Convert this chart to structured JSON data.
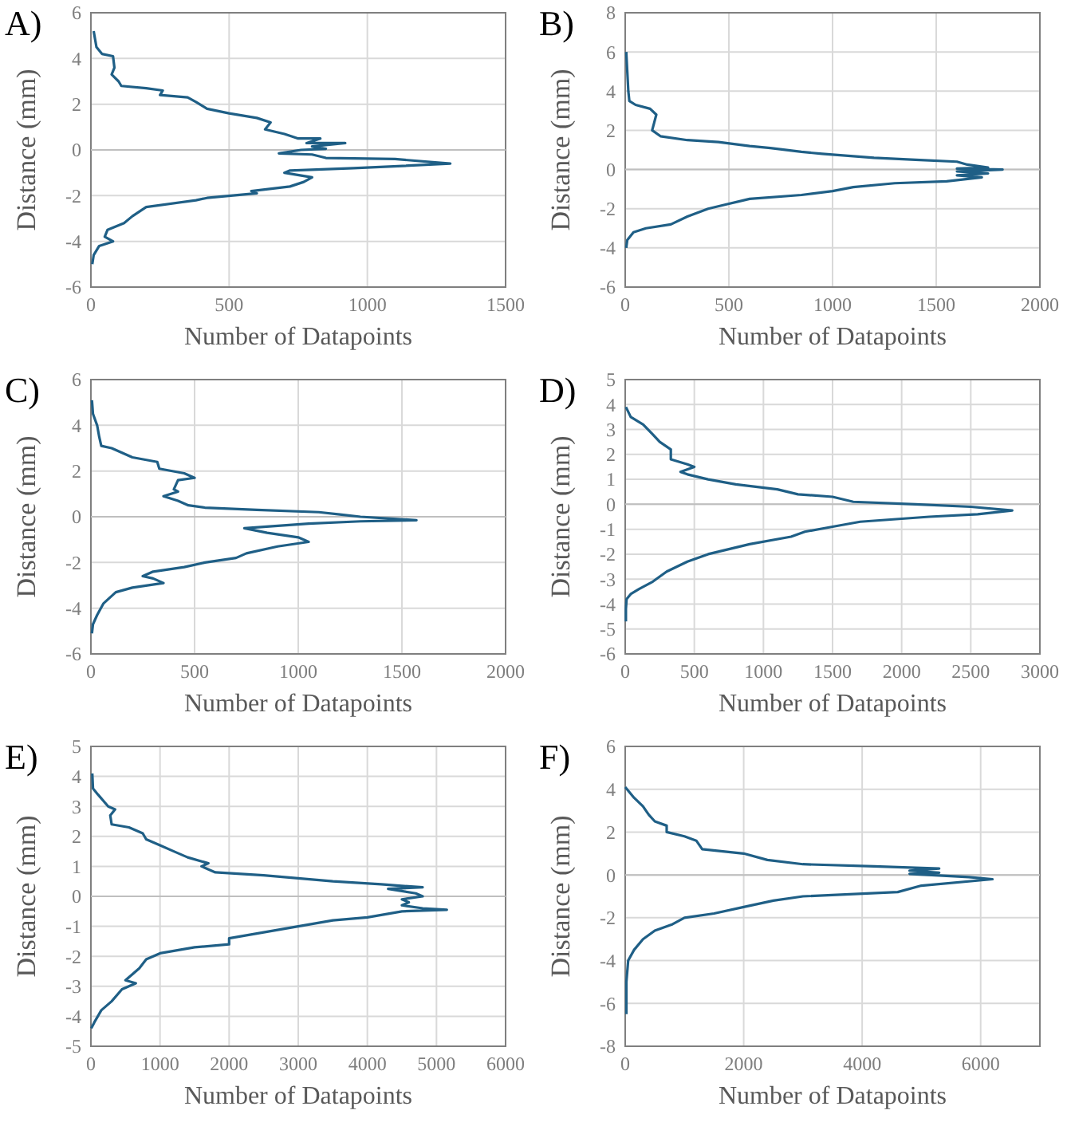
{
  "chart_data": [
    {
      "type": "line",
      "title": "A)",
      "xlabel": "Number of Datapoints",
      "ylabel": "Distance (mm)",
      "xlim": [
        0,
        1500
      ],
      "xticks": [
        0,
        500,
        1000,
        1500
      ],
      "ylim": [
        -6,
        6
      ],
      "yticks": [
        -6,
        -4,
        -2,
        0,
        2,
        4,
        6
      ],
      "grid": true,
      "series": [
        {
          "color": "#1f5f86",
          "x": [
            10,
            20,
            40,
            80,
            85,
            75,
            100,
            110,
            200,
            260,
            250,
            350,
            380,
            420,
            500,
            600,
            650,
            630,
            700,
            750,
            830,
            780,
            920,
            800,
            850,
            760,
            680,
            800,
            850,
            1100,
            1300,
            950,
            720,
            700,
            800,
            770,
            720,
            580,
            600,
            420,
            380,
            200,
            150,
            120,
            60,
            50,
            80,
            30,
            10,
            5
          ],
          "values": [
            5.2,
            4.5,
            4.2,
            4.1,
            3.6,
            3.3,
            3.0,
            2.8,
            2.7,
            2.6,
            2.4,
            2.3,
            2.1,
            1.8,
            1.6,
            1.4,
            1.2,
            0.9,
            0.7,
            0.5,
            0.5,
            0.3,
            0.3,
            0.15,
            0.05,
            0.0,
            -0.15,
            -0.2,
            -0.35,
            -0.4,
            -0.6,
            -0.8,
            -0.9,
            -1.0,
            -1.2,
            -1.4,
            -1.6,
            -1.8,
            -1.9,
            -2.1,
            -2.2,
            -2.5,
            -2.9,
            -3.2,
            -3.5,
            -3.8,
            -4.0,
            -4.2,
            -4.6,
            -5.0
          ]
        }
      ]
    },
    {
      "type": "line",
      "title": "B)",
      "xlabel": "Number of Datapoints",
      "ylabel": "Distance (mm)",
      "xlim": [
        0,
        2000
      ],
      "xticks": [
        0,
        500,
        1000,
        1500,
        2000
      ],
      "ylim": [
        -6,
        8
      ],
      "yticks": [
        -6,
        -4,
        -2,
        0,
        2,
        4,
        6,
        8
      ],
      "grid": true,
      "series": [
        {
          "color": "#1f5f86",
          "x": [
            5,
            10,
            15,
            20,
            50,
            120,
            150,
            140,
            130,
            170,
            300,
            450,
            600,
            700,
            850,
            950,
            1200,
            1400,
            1600,
            1650,
            1750,
            1600,
            1820,
            1600,
            1750,
            1600,
            1720,
            1550,
            1300,
            1100,
            1000,
            850,
            600,
            480,
            400,
            300,
            220,
            100,
            40,
            10,
            5
          ],
          "values": [
            6,
            5,
            4,
            3.5,
            3.3,
            3.1,
            2.8,
            2.4,
            2.0,
            1.7,
            1.5,
            1.4,
            1.2,
            1.1,
            0.9,
            0.8,
            0.6,
            0.5,
            0.4,
            0.25,
            0.1,
            0.05,
            0.0,
            -0.1,
            -0.2,
            -0.3,
            -0.4,
            -0.6,
            -0.7,
            -0.9,
            -1.1,
            -1.3,
            -1.5,
            -1.8,
            -2.0,
            -2.4,
            -2.8,
            -3.0,
            -3.2,
            -3.6,
            -4.0
          ]
        }
      ]
    },
    {
      "type": "line",
      "title": "C)",
      "xlabel": "Number of Datapoints",
      "ylabel": "Distance (mm)",
      "xlim": [
        0,
        2000
      ],
      "xticks": [
        0,
        500,
        1000,
        1500,
        2000
      ],
      "ylim": [
        -6,
        6
      ],
      "yticks": [
        -6,
        -4,
        -2,
        0,
        2,
        4,
        6
      ],
      "grid": true,
      "series": [
        {
          "color": "#1f5f86",
          "x": [
            5,
            10,
            30,
            40,
            50,
            100,
            150,
            200,
            320,
            330,
            450,
            500,
            420,
            400,
            420,
            350,
            420,
            470,
            550,
            800,
            1100,
            1200,
            1300,
            1570,
            1300,
            1050,
            740,
            850,
            1000,
            1050,
            900,
            750,
            700,
            550,
            450,
            300,
            250,
            300,
            350,
            200,
            120,
            60,
            30,
            10,
            5
          ],
          "values": [
            5.1,
            4.5,
            4.0,
            3.5,
            3.1,
            3.0,
            2.8,
            2.6,
            2.4,
            2.1,
            1.9,
            1.7,
            1.6,
            1.2,
            1.1,
            0.9,
            0.7,
            0.5,
            0.4,
            0.3,
            0.2,
            0.1,
            0.0,
            -0.15,
            -0.2,
            -0.3,
            -0.5,
            -0.7,
            -0.9,
            -1.1,
            -1.3,
            -1.6,
            -1.8,
            -2.0,
            -2.2,
            -2.4,
            -2.6,
            -2.7,
            -2.9,
            -3.1,
            -3.3,
            -3.8,
            -4.3,
            -4.7,
            -5.1
          ]
        }
      ]
    },
    {
      "type": "line",
      "title": "D)",
      "xlabel": "Number of Datapoints",
      "ylabel": "Distance (mm)",
      "xlim": [
        0,
        3000
      ],
      "xticks": [
        0,
        500,
        1000,
        1500,
        2000,
        2500,
        3000
      ],
      "ylim": [
        -6,
        5
      ],
      "yticks": [
        -6,
        -5,
        -4,
        -3,
        -2,
        -1,
        0,
        1,
        2,
        3,
        4,
        5
      ],
      "grid": true,
      "series": [
        {
          "color": "#1f5f86",
          "x": [
            5,
            40,
            130,
            200,
            250,
            330,
            330,
            450,
            500,
            400,
            450,
            600,
            800,
            1100,
            1250,
            1500,
            1650,
            2100,
            2500,
            2800,
            2550,
            2200,
            1700,
            1500,
            1300,
            1200,
            900,
            750,
            600,
            450,
            300,
            200,
            100,
            40,
            10,
            5,
            5
          ],
          "values": [
            3.9,
            3.5,
            3.2,
            2.8,
            2.5,
            2.2,
            1.8,
            1.6,
            1.5,
            1.3,
            1.2,
            1.0,
            0.8,
            0.6,
            0.4,
            0.3,
            0.1,
            0.0,
            -0.1,
            -0.25,
            -0.4,
            -0.5,
            -0.7,
            -0.9,
            -1.1,
            -1.3,
            -1.6,
            -1.8,
            -2.0,
            -2.3,
            -2.7,
            -3.1,
            -3.4,
            -3.6,
            -3.8,
            -4.2,
            -4.7
          ]
        }
      ]
    },
    {
      "type": "line",
      "title": "E)",
      "xlabel": "Number of Datapoints",
      "ylabel": "Distance (mm)",
      "xlim": [
        0,
        6000
      ],
      "xticks": [
        0,
        1000,
        2000,
        3000,
        4000,
        5000,
        6000
      ],
      "ylim": [
        -5,
        5
      ],
      "yticks": [
        -5,
        -4,
        -3,
        -2,
        -1,
        0,
        1,
        2,
        3,
        4,
        5
      ],
      "grid": true,
      "series": [
        {
          "color": "#1f5f86",
          "x": [
            20,
            30,
            100,
            250,
            350,
            280,
            300,
            550,
            750,
            800,
            1000,
            1200,
            1400,
            1700,
            1600,
            1800,
            2500,
            3500,
            4200,
            4800,
            4300,
            4700,
            4800,
            4500,
            4600,
            4500,
            4800,
            5150,
            4500,
            4000,
            3500,
            3000,
            2500,
            2000,
            2000,
            1500,
            1000,
            800,
            700,
            600,
            500,
            650,
            450,
            300,
            150,
            50,
            5
          ],
          "values": [
            4.1,
            3.6,
            3.4,
            3.0,
            2.9,
            2.7,
            2.4,
            2.3,
            2.1,
            1.9,
            1.7,
            1.5,
            1.3,
            1.1,
            1.0,
            0.8,
            0.7,
            0.5,
            0.4,
            0.3,
            0.25,
            0.1,
            0.0,
            -0.1,
            -0.2,
            -0.3,
            -0.4,
            -0.45,
            -0.5,
            -0.7,
            -0.8,
            -1.0,
            -1.2,
            -1.4,
            -1.6,
            -1.7,
            -1.9,
            -2.1,
            -2.4,
            -2.6,
            -2.8,
            -2.9,
            -3.1,
            -3.5,
            -3.8,
            -4.2,
            -4.4
          ]
        }
      ]
    },
    {
      "type": "line",
      "title": "F)",
      "xlabel": "Number of Datapoints",
      "ylabel": "Distance (mm)",
      "xlim": [
        0,
        7000
      ],
      "xticks": [
        0,
        2000,
        4000,
        6000
      ],
      "ylim": [
        -8,
        6
      ],
      "yticks": [
        -8,
        -6,
        -4,
        -2,
        0,
        2,
        4,
        6
      ],
      "grid": true,
      "series": [
        {
          "color": "#1f5f86",
          "x": [
            0,
            150,
            300,
            400,
            500,
            700,
            700,
            1000,
            1200,
            1300,
            2000,
            2400,
            3000,
            4200,
            5300,
            4800,
            5300,
            4800,
            5800,
            6200,
            5000,
            4600,
            3000,
            2500,
            2000,
            1500,
            1000,
            800,
            500,
            300,
            150,
            50,
            20,
            20,
            20
          ],
          "values": [
            4.1,
            3.6,
            3.2,
            2.8,
            2.5,
            2.3,
            2.0,
            1.8,
            1.6,
            1.2,
            1.0,
            0.7,
            0.5,
            0.4,
            0.3,
            0.2,
            0.1,
            0.05,
            -0.1,
            -0.2,
            -0.5,
            -0.8,
            -1.0,
            -1.2,
            -1.5,
            -1.8,
            -2.0,
            -2.3,
            -2.6,
            -3.0,
            -3.5,
            -4.0,
            -5.0,
            -6.0,
            -6.5
          ]
        }
      ]
    }
  ]
}
